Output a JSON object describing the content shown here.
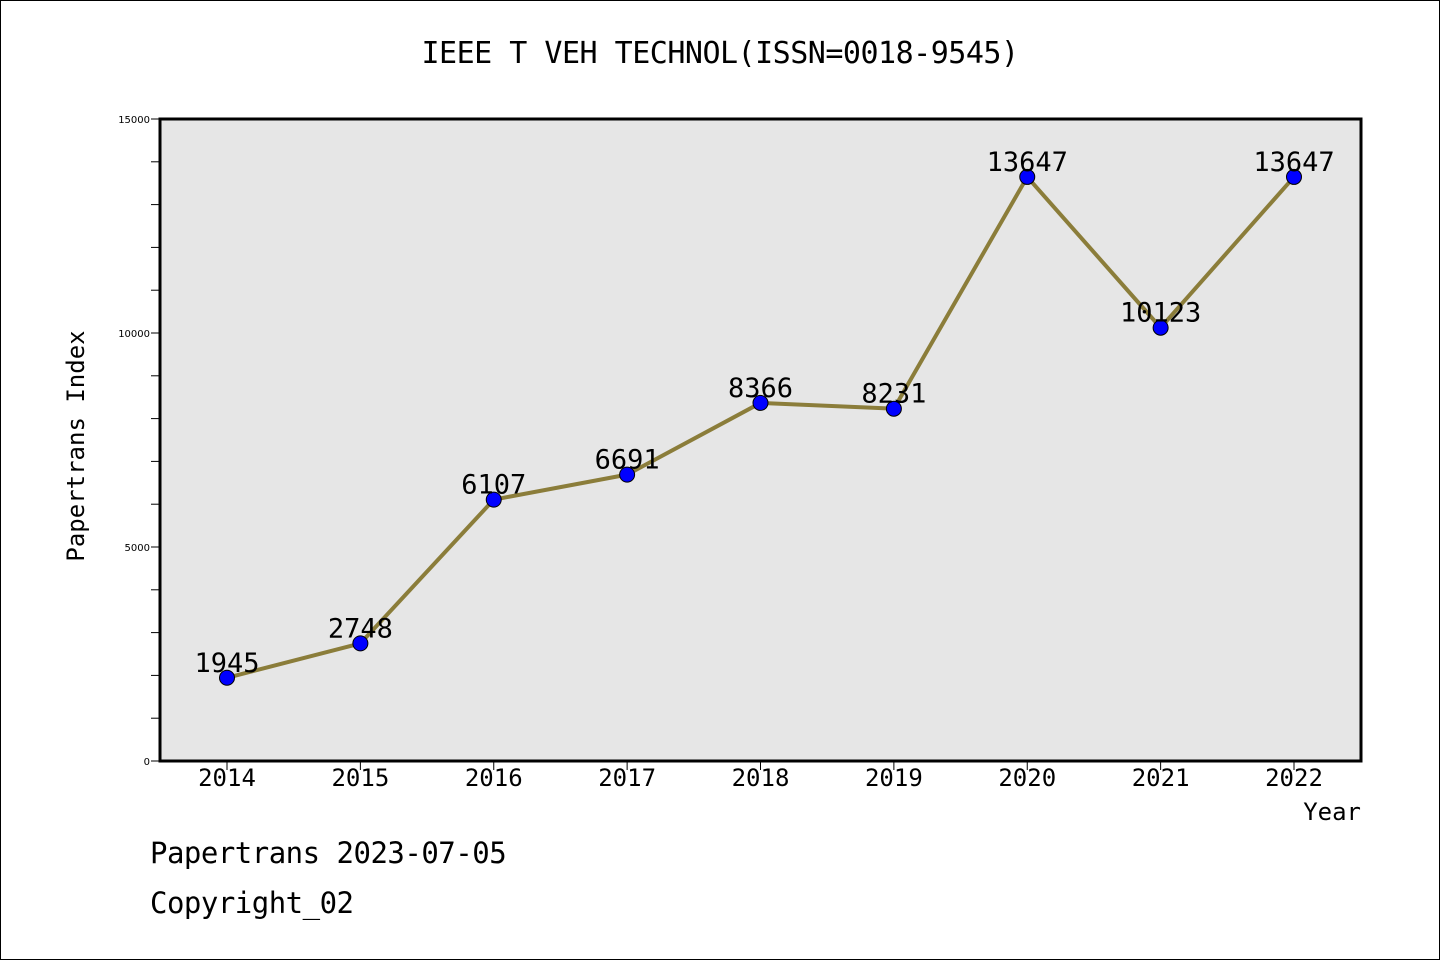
{
  "title": "IEEE T VEH TECHNOL(ISSN=0018-9545)",
  "footer": {
    "date_text": "Papertrans 2023-07-05",
    "copyright_text": "Copyright_02"
  },
  "colors": {
    "plot_background": "#e6e6e6",
    "line": "#8b7d3a",
    "marker": "#0000ff"
  },
  "chart_data": {
    "type": "line",
    "xlabel": "Year",
    "ylabel": "Papertrans Index",
    "categories": [
      "2014",
      "2015",
      "2016",
      "2017",
      "2018",
      "2019",
      "2020",
      "2021",
      "2022"
    ],
    "series": [
      {
        "values": [
          1945,
          2748,
          6107,
          6691,
          8366,
          8231,
          13647,
          10123,
          13647
        ]
      }
    ],
    "data_labels": [
      "1945",
      "2748",
      "6107",
      "6691",
      "8366",
      "8231",
      "13647",
      "10123",
      "13647"
    ],
    "ylim": [
      0,
      15000
    ],
    "yticks": [
      0,
      5000,
      10000,
      15000
    ],
    "ytick_labels": [
      "0",
      "5000",
      "10000",
      "15000"
    ],
    "grid": false,
    "legend": "none"
  }
}
